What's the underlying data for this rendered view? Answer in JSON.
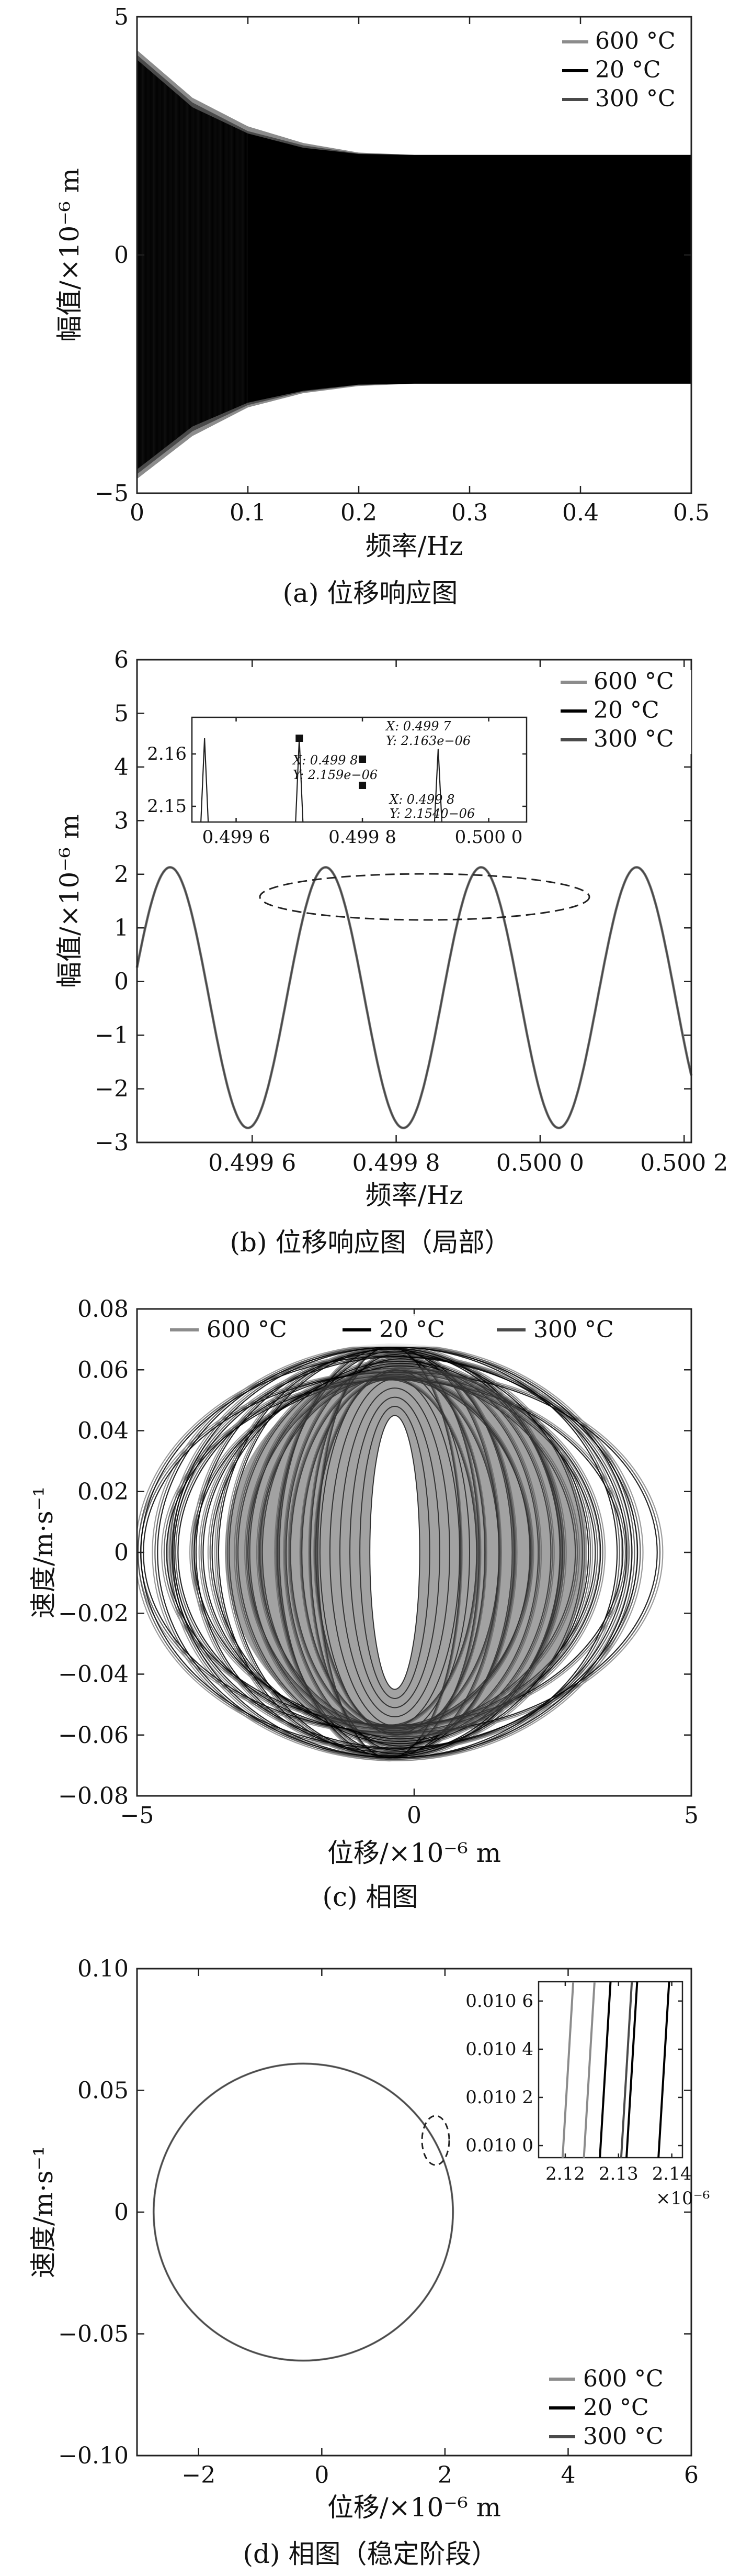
{
  "colors": {
    "series_600": "#8c8c8c",
    "series_20": "#000000",
    "series_300": "#4a4a4a",
    "band": "#555555"
  },
  "legend_labels": [
    "600 °C",
    "20 °C",
    "300 °C"
  ],
  "panels": [
    {
      "caption": "(a) 位移响应图",
      "xlabel": "频率/Hz",
      "ylabel": "幅值/×10⁻⁶ m",
      "xticks": [
        "0",
        "0.1",
        "0.2",
        "0.3",
        "0.4",
        "0.5"
      ],
      "yticks": [
        "5",
        "0",
        "−5"
      ]
    },
    {
      "caption": "(b) 位移响应图（局部）",
      "xlabel": "频率/Hz",
      "ylabel": "幅值/×10⁻⁶ m",
      "xticks": [
        "0.499 6",
        "0.499 8",
        "0.500 0",
        "0.500 2"
      ],
      "yticks": [
        "6",
        "5",
        "4",
        "3",
        "2",
        "1",
        "0",
        "−1",
        "−2",
        "−3"
      ],
      "inset": {
        "xticks": [
          "0.499 6",
          "0.499 8",
          "0.500 0"
        ],
        "yticks": [
          "2.16",
          "2.15"
        ],
        "datatips": [
          {
            "x": "X: 0.499 7",
            "y": "Y: 2.163e−06"
          },
          {
            "x": "X: 0.499 8",
            "y": "Y: 2.159e−06"
          },
          {
            "x": "X: 0.499 8",
            "y": "Y: 2.1540−06"
          }
        ]
      }
    },
    {
      "caption": "(c) 相图",
      "xlabel": "位移/×10⁻⁶ m",
      "ylabel": "速度/m·s⁻¹",
      "xticks": [
        "−5",
        "0",
        "5"
      ],
      "yticks": [
        "0.08",
        "0.06",
        "0.04",
        "0.02",
        "0",
        "−0.02",
        "−0.04",
        "−0.06",
        "−0.08"
      ]
    },
    {
      "caption": "(d) 相图（稳定阶段）",
      "xlabel": "位移/×10⁻⁶ m",
      "ylabel": "速度/m·s⁻¹",
      "xticks": [
        "−2",
        "0",
        "2",
        "4",
        "6"
      ],
      "yticks": [
        "0.10",
        "0.05",
        "0",
        "−0.05",
        "−0.10"
      ],
      "inset": {
        "xticks": [
          "2.12",
          "2.13",
          "2.14"
        ],
        "yticks": [
          "0.010 6",
          "0.010 4",
          "0.010 2",
          "0.010 0"
        ],
        "exponent": "×10⁻⁶"
      }
    }
  ],
  "chart_data": [
    {
      "type": "line",
      "xlim": [
        0,
        0.5
      ],
      "ylim": [
        -5,
        5
      ],
      "legend_position": "top-right",
      "series": [
        {
          "name": "600 °C",
          "envelope_x": [
            0,
            0.05,
            0.1,
            0.15,
            0.2,
            0.25,
            0.3,
            0.5
          ],
          "upper": [
            4.3,
            3.3,
            2.7,
            2.35,
            2.15,
            2.1,
            2.1,
            2.1
          ],
          "lower": [
            -4.7,
            -3.8,
            -3.2,
            -2.9,
            -2.75,
            -2.7,
            -2.7,
            -2.7
          ]
        },
        {
          "name": "20 °C",
          "envelope_x": [
            0,
            0.05,
            0.1,
            0.15,
            0.2,
            0.25,
            0.3,
            0.5
          ],
          "upper": [
            4.1,
            3.1,
            2.55,
            2.25,
            2.12,
            2.1,
            2.1,
            2.1
          ],
          "lower": [
            -4.5,
            -3.6,
            -3.1,
            -2.85,
            -2.72,
            -2.7,
            -2.7,
            -2.7
          ]
        },
        {
          "name": "300 °C",
          "envelope_x": [
            0,
            0.05,
            0.1,
            0.15,
            0.2,
            0.25,
            0.3,
            0.5
          ],
          "upper": [
            4.2,
            3.2,
            2.6,
            2.3,
            2.13,
            2.1,
            2.1,
            2.1
          ],
          "lower": [
            -4.6,
            -3.7,
            -3.15,
            -2.87,
            -2.73,
            -2.7,
            -2.7,
            -2.7
          ]
        }
      ]
    },
    {
      "type": "line",
      "xlim": [
        0.49944,
        0.50021
      ],
      "ylim": [
        -3,
        6
      ],
      "legend_position": "top-right",
      "series": [
        {
          "name": "600 °C",
          "form": "sine",
          "mean": -0.3,
          "amplitude": 2.43,
          "period": 0.000216,
          "phase_peak_x": 0.499702
        },
        {
          "name": "20 °C",
          "form": "sine",
          "mean": -0.3,
          "amplitude": 2.43,
          "period": 0.000216,
          "phase_peak_x": 0.499702
        },
        {
          "name": "300 °C",
          "form": "sine",
          "mean": -0.3,
          "amplitude": 2.43,
          "period": 0.000216,
          "phase_peak_x": 0.499702
        }
      ],
      "inset": {
        "xlim": [
          0.49953,
          0.50006
        ],
        "ylim": [
          2.147,
          2.167
        ],
        "peaks": [
          {
            "x": 0.49955,
            "y": 2.163
          },
          {
            "x": 0.4997,
            "y": 2.163
          },
          {
            "x": 0.49992,
            "y": 2.161
          }
        ],
        "datatips": [
          {
            "x": 0.4997,
            "y": 2.163
          },
          {
            "x": 0.4998,
            "y": 2.159
          },
          {
            "x": 0.4998,
            "y": 2.154
          }
        ]
      }
    },
    {
      "type": "line",
      "xlim": [
        -5,
        5
      ],
      "ylim": [
        -0.08,
        0.08
      ],
      "legend_position": "top",
      "series": [
        {
          "name": "600 °C",
          "form": "filled phase portrait",
          "x_range": [
            -4.9,
            4.5
          ],
          "v_range": [
            -0.068,
            0.069
          ]
        },
        {
          "name": "20 °C",
          "form": "filled phase portrait",
          "x_range": [
            -4.8,
            4.4
          ],
          "v_range": [
            -0.067,
            0.068
          ]
        },
        {
          "name": "300 °C",
          "form": "filled phase portrait",
          "x_range": [
            -4.85,
            4.45
          ],
          "v_range": [
            -0.0675,
            0.0685
          ]
        }
      ]
    },
    {
      "type": "line",
      "xlim": [
        -3,
        6
      ],
      "ylim": [
        -0.1,
        0.1
      ],
      "legend_position": "bottom-right",
      "series": [
        {
          "name": "600 °C",
          "form": "ellipse",
          "center_x": -0.3,
          "center_v": 0,
          "radius_x": 2.43,
          "radius_v": 0.061
        },
        {
          "name": "20 °C",
          "form": "ellipse",
          "center_x": -0.3,
          "center_v": 0,
          "radius_x": 2.43,
          "radius_v": 0.061
        },
        {
          "name": "300 °C",
          "form": "ellipse",
          "center_x": -0.3,
          "center_v": 0,
          "radius_x": 2.43,
          "radius_v": 0.061
        }
      ],
      "inset": {
        "xlim": [
          2.115,
          2.142
        ],
        "ylim": [
          0.00995,
          0.01068
        ],
        "lines": [
          {
            "name": "600 °C",
            "x_top": 2.1215,
            "x_bottom": 2.1195
          },
          {
            "name": "600 °C",
            "x_top": 2.1255,
            "x_bottom": 2.1235
          },
          {
            "name": "20 °C",
            "x_top": 2.1285,
            "x_bottom": 2.1265
          },
          {
            "name": "20 °C",
            "x_top": 2.1335,
            "x_bottom": 2.1315
          },
          {
            "name": "300 °C",
            "x_top": 2.1325,
            "x_bottom": 2.1305
          },
          {
            "name": "20 °C",
            "x_top": 2.1395,
            "x_bottom": 2.1375
          }
        ]
      }
    }
  ]
}
